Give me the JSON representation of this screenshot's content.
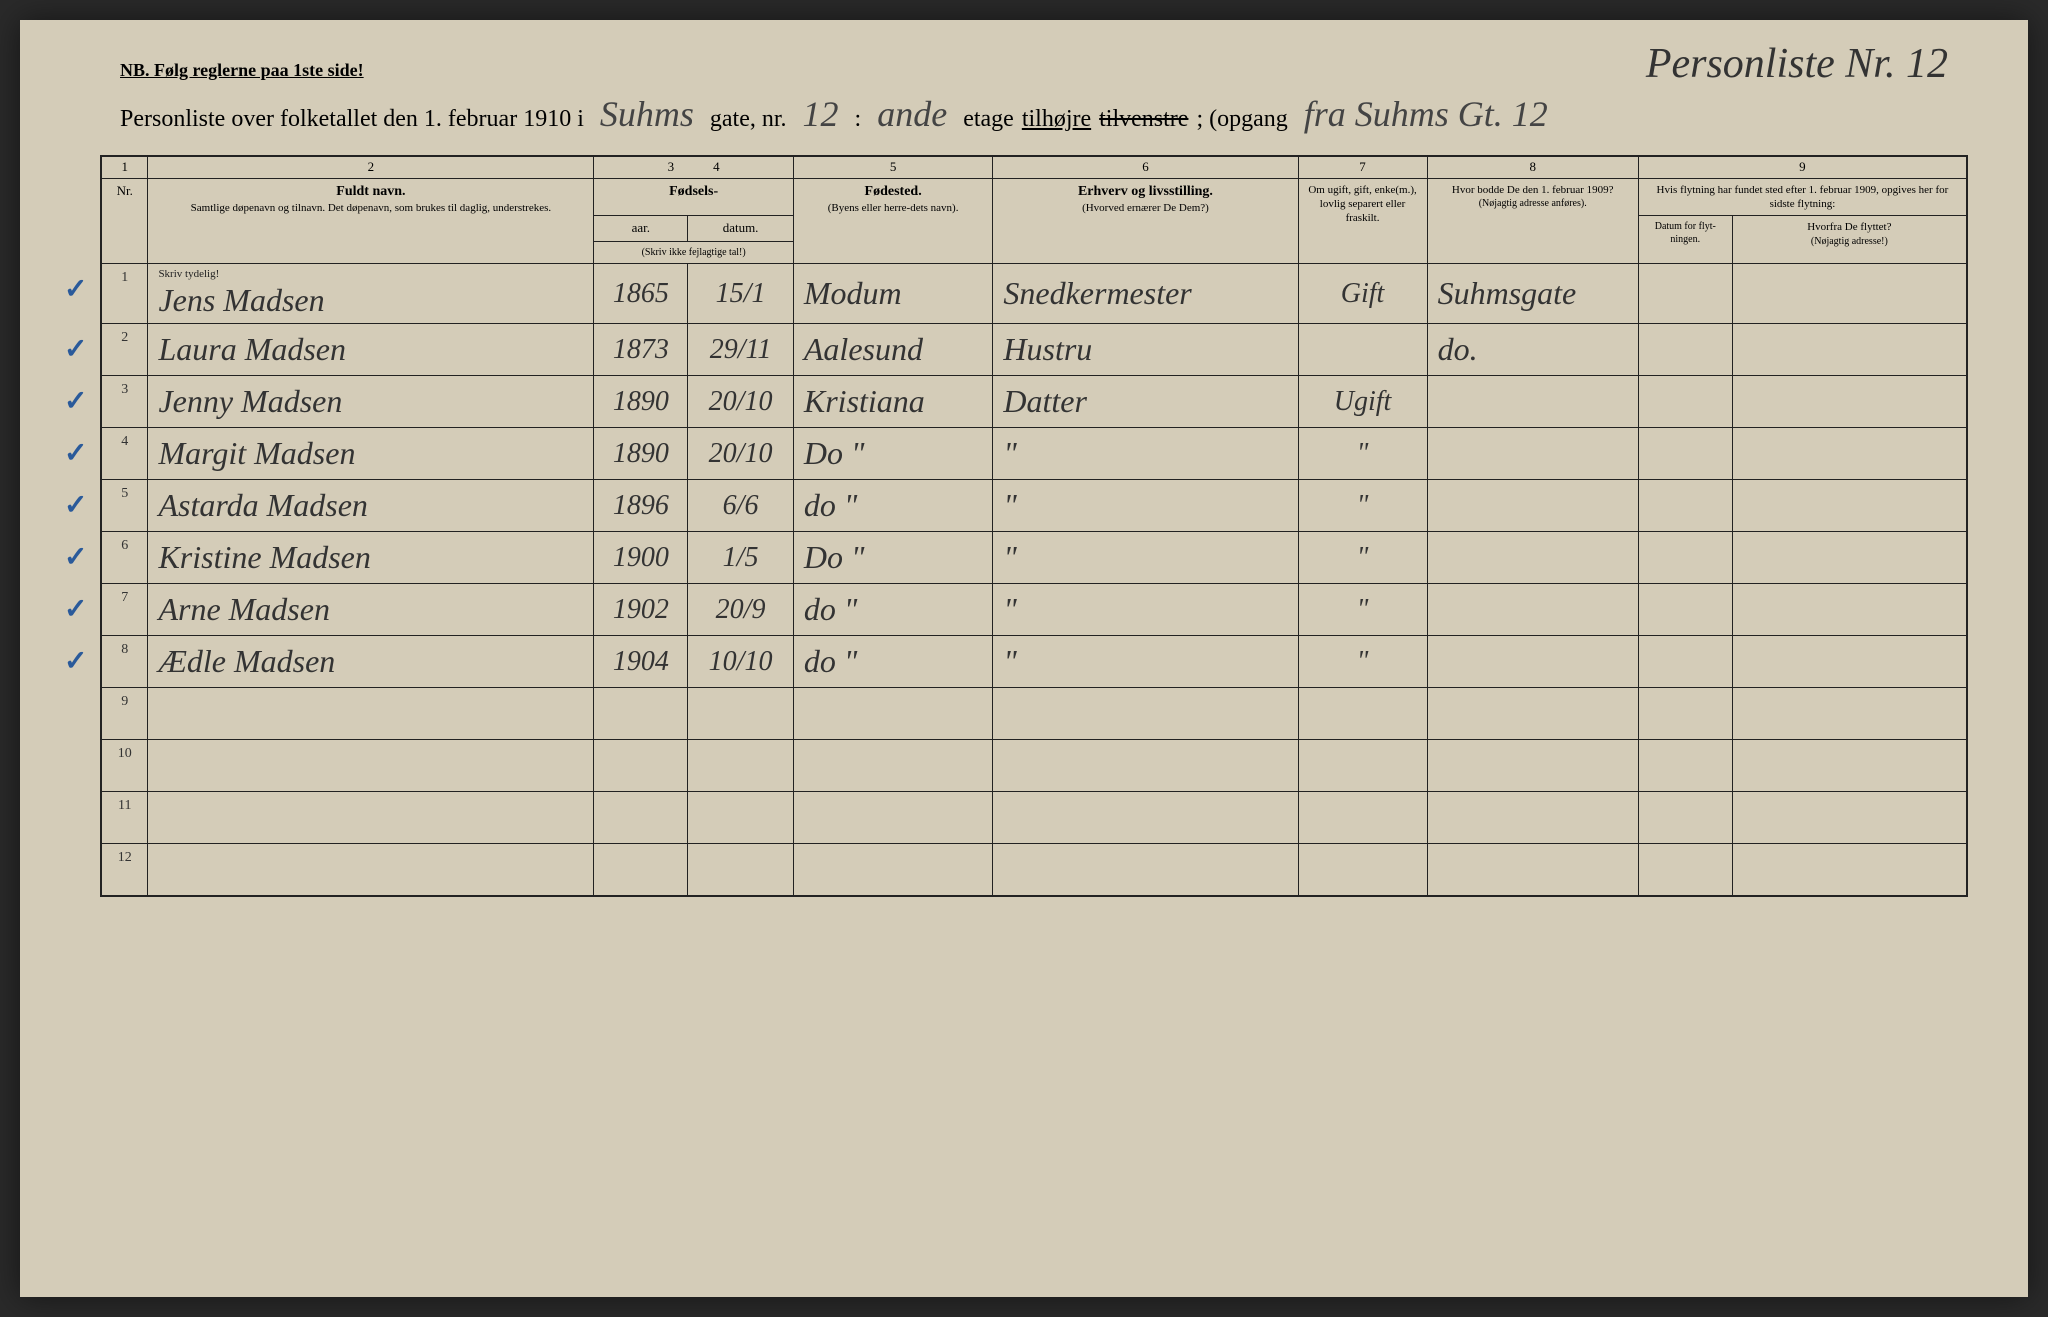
{
  "topNote": "NB.  Følg reglerne paa 1ste side!",
  "handwrittenTop": "Personliste Nr. 12",
  "titleLine": {
    "prefix": "Personliste over folketallet den 1. februar 1910 i",
    "street": "Suhms",
    "gateLabel": "gate, nr.",
    "gateNr": "12",
    "etageLabel": "etage",
    "etageHand": "ande",
    "tilhojre": "tilhøjre",
    "tilvenstre": "tilvenstre",
    "opgang": "; (opgang",
    "opgangHand": "fra Suhms Gt. 12"
  },
  "columns": {
    "nums": [
      "1",
      "2",
      "3",
      "4",
      "5",
      "6",
      "7",
      "8",
      "9"
    ],
    "nr": "Nr.",
    "name": {
      "main": "Fuldt navn.",
      "sub": "Samtlige døpenavn og tilnavn. Det døpenavn, som brukes til daglig, understrekes."
    },
    "birth": {
      "main": "Fødsels-",
      "year": "aar.",
      "date": "datum.",
      "sub": "(Skriv ikke fejlagtige tal!)"
    },
    "birthplace": {
      "main": "Fødested.",
      "sub": "(Byens eller herre-dets navn)."
    },
    "occupation": {
      "main": "Erhverv og livsstilling.",
      "sub": "(Hvorved ernærer De Dem?)"
    },
    "marital": "Om ugift, gift, enke(m.), lovlig separert eller fraskilt.",
    "prevAddress": {
      "main": "Hvor bodde De den 1. februar 1909?",
      "sub": "(Nøjagtig adresse anføres)."
    },
    "lastMove": {
      "main": "Hvis flytning har fundet sted efter 1. februar 1909, opgives her for sidste flytning:",
      "date": "Datum for flyt-ningen.",
      "from": "Hvorfra De flyttet?",
      "fromSub": "(Nøjagtig adresse!)"
    },
    "writeClearlyNote": "Skriv tydelig!"
  },
  "rows": [
    {
      "nr": "1",
      "tick": true,
      "name": "Jens Madsen",
      "year": "1865",
      "date": "15/1",
      "place": "Modum",
      "occ": "Snedkermester",
      "marital": "Gift",
      "prev": "Suhmsgate",
      "movedate": "",
      "movefrom": ""
    },
    {
      "nr": "2",
      "tick": true,
      "name": "Laura Madsen",
      "year": "1873",
      "date": "29/11",
      "place": "Aalesund",
      "occ": "Hustru",
      "marital": "",
      "prev": "do.",
      "movedate": "",
      "movefrom": ""
    },
    {
      "nr": "3",
      "tick": true,
      "name": "Jenny Madsen",
      "year": "1890",
      "date": "20/10",
      "place": "Kristiana",
      "occ": "Datter",
      "marital": "Ugift",
      "prev": "",
      "movedate": "",
      "movefrom": ""
    },
    {
      "nr": "4",
      "tick": true,
      "name": "Margit Madsen",
      "year": "1890",
      "date": "20/10",
      "place": "Do \"",
      "occ": "\"",
      "marital": "\"",
      "prev": "",
      "movedate": "",
      "movefrom": ""
    },
    {
      "nr": "5",
      "tick": true,
      "name": "Astarda Madsen",
      "year": "1896",
      "date": "6/6",
      "place": "do \"",
      "occ": "\"",
      "marital": "\"",
      "prev": "",
      "movedate": "",
      "movefrom": ""
    },
    {
      "nr": "6",
      "tick": true,
      "name": "Kristine Madsen",
      "year": "1900",
      "date": "1/5",
      "place": "Do \"",
      "occ": "\"",
      "marital": "\"",
      "prev": "",
      "movedate": "",
      "movefrom": ""
    },
    {
      "nr": "7",
      "tick": true,
      "name": "Arne Madsen",
      "year": "1902",
      "date": "20/9",
      "place": "do \"",
      "occ": "\"",
      "marital": "\"",
      "prev": "",
      "movedate": "",
      "movefrom": ""
    },
    {
      "nr": "8",
      "tick": true,
      "name": "Ædle Madsen",
      "year": "1904",
      "date": "10/10",
      "place": "do \"",
      "occ": "\"",
      "marital": "\"",
      "prev": "",
      "movedate": "",
      "movefrom": ""
    },
    {
      "nr": "9",
      "tick": false,
      "name": "",
      "year": "",
      "date": "",
      "place": "",
      "occ": "",
      "marital": "",
      "prev": "",
      "movedate": "",
      "movefrom": ""
    },
    {
      "nr": "10",
      "tick": false,
      "name": "",
      "year": "",
      "date": "",
      "place": "",
      "occ": "",
      "marital": "",
      "prev": "",
      "movedate": "",
      "movefrom": ""
    },
    {
      "nr": "11",
      "tick": false,
      "name": "",
      "year": "",
      "date": "",
      "place": "",
      "occ": "",
      "marital": "",
      "prev": "",
      "movedate": "",
      "movefrom": ""
    },
    {
      "nr": "12",
      "tick": false,
      "name": "",
      "year": "",
      "date": "",
      "place": "",
      "occ": "",
      "marital": "",
      "prev": "",
      "movedate": "",
      "movefrom": ""
    }
  ]
}
